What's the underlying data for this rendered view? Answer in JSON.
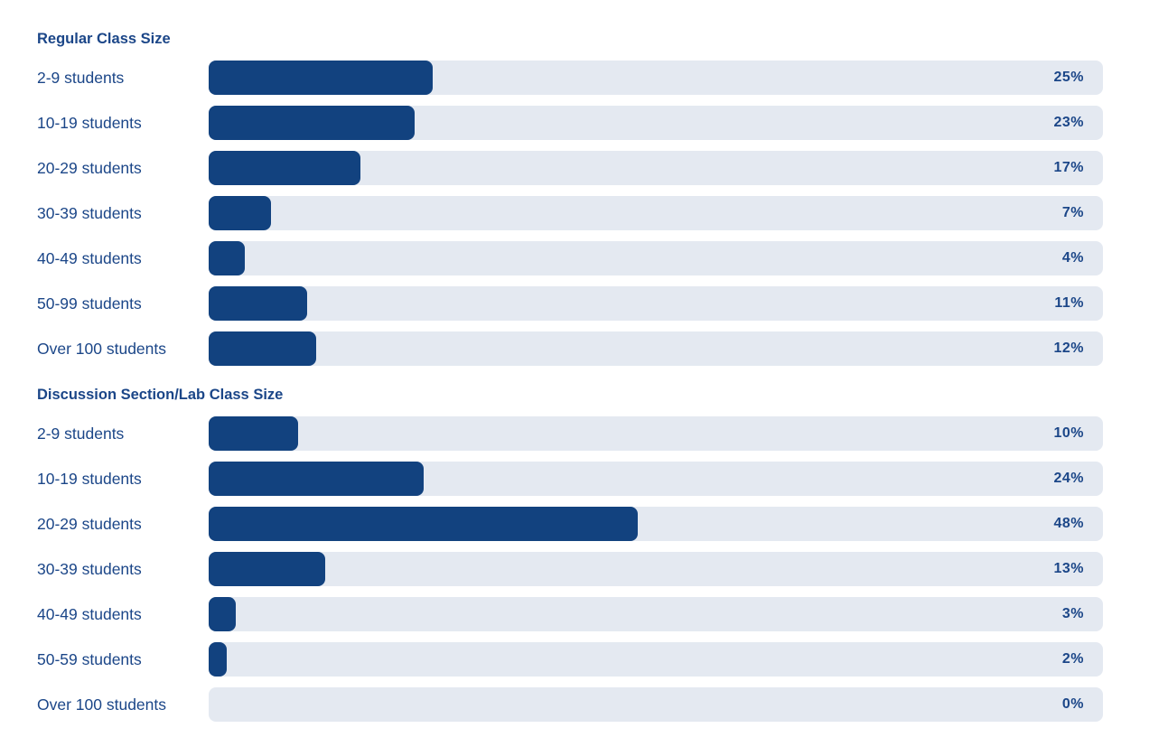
{
  "colors": {
    "bar_fill": "#12427F",
    "bar_track": "#E4E9F1",
    "text": "#1B4688",
    "background": "#FFFFFF"
  },
  "chart_data": [
    {
      "type": "bar",
      "orientation": "horizontal",
      "title": "Regular Class Size",
      "xlim": [
        0,
        100
      ],
      "unit": "%",
      "grid": false,
      "categories": [
        "2-9 students",
        "10-19 students",
        "20-29 students",
        "30-39 students",
        "40-49 students",
        "50-99 students",
        "Over 100 students"
      ],
      "values": [
        25,
        23,
        17,
        7,
        4,
        11,
        12
      ],
      "value_labels": [
        "25%",
        "23%",
        "17%",
        "7%",
        "4%",
        "11%",
        "12%"
      ]
    },
    {
      "type": "bar",
      "orientation": "horizontal",
      "title": "Discussion Section/Lab Class Size",
      "xlim": [
        0,
        100
      ],
      "unit": "%",
      "grid": false,
      "categories": [
        "2-9 students",
        "10-19 students",
        "20-29 students",
        "30-39 students",
        "40-49 students",
        "50-59 students",
        "Over 100 students"
      ],
      "values": [
        10,
        24,
        48,
        13,
        3,
        2,
        0
      ],
      "value_labels": [
        "10%",
        "24%",
        "48%",
        "13%",
        "3%",
        "2%",
        "0%"
      ]
    }
  ]
}
